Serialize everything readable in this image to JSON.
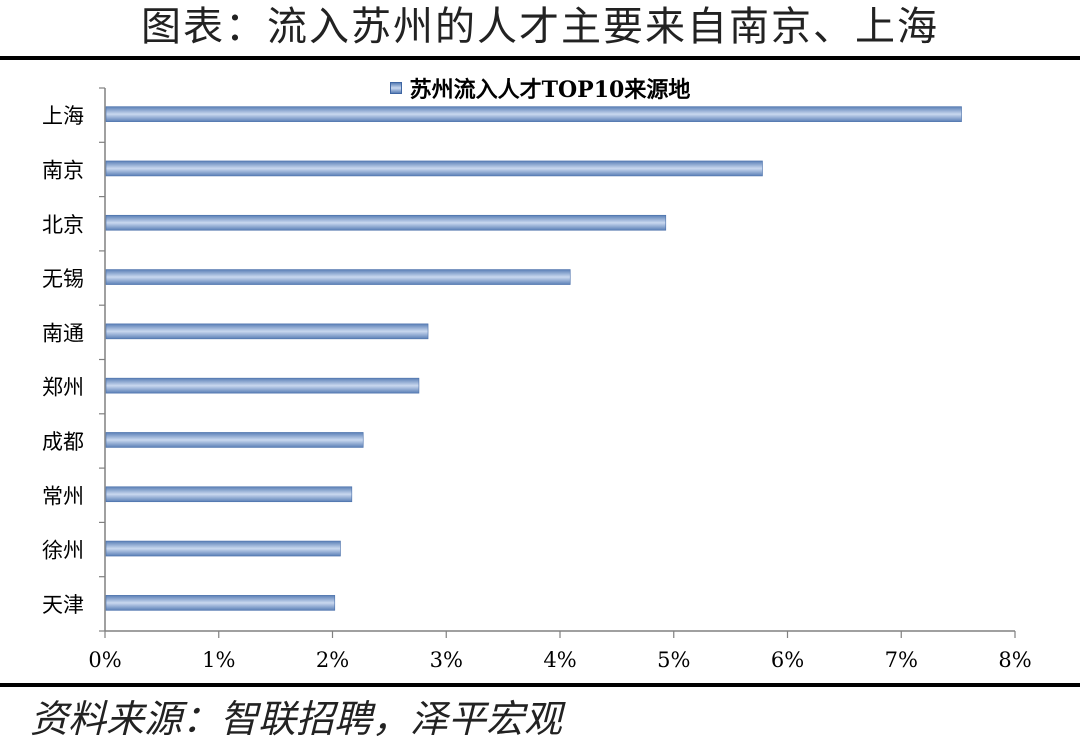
{
  "header": {
    "title": "图表：流入苏州的人才主要来自南京、上海"
  },
  "footer": {
    "source": "资料来源：智联招聘，泽平宏观"
  },
  "colors": {
    "bar_fill_edge": "#5a7fb6",
    "bar_fill_center": "#c9d8ef",
    "axis": "#808080"
  },
  "chart_data": {
    "type": "bar",
    "orientation": "horizontal",
    "title": "",
    "xlabel": "",
    "ylabel": "",
    "categories": [
      "上海",
      "南京",
      "北京",
      "无锡",
      "南通",
      "郑州",
      "成都",
      "常州",
      "徐州",
      "天津"
    ],
    "series": [
      {
        "name": "苏州流入人才TOP10来源地",
        "values": [
          7.53,
          5.78,
          4.93,
          4.09,
          2.84,
          2.76,
          2.27,
          2.17,
          2.07,
          2.02
        ]
      }
    ],
    "xlim": [
      0,
      8
    ],
    "xticks": [
      "0%",
      "1%",
      "2%",
      "3%",
      "4%",
      "5%",
      "6%",
      "7%",
      "8%"
    ],
    "grid": false,
    "legend_position": "top-center"
  }
}
